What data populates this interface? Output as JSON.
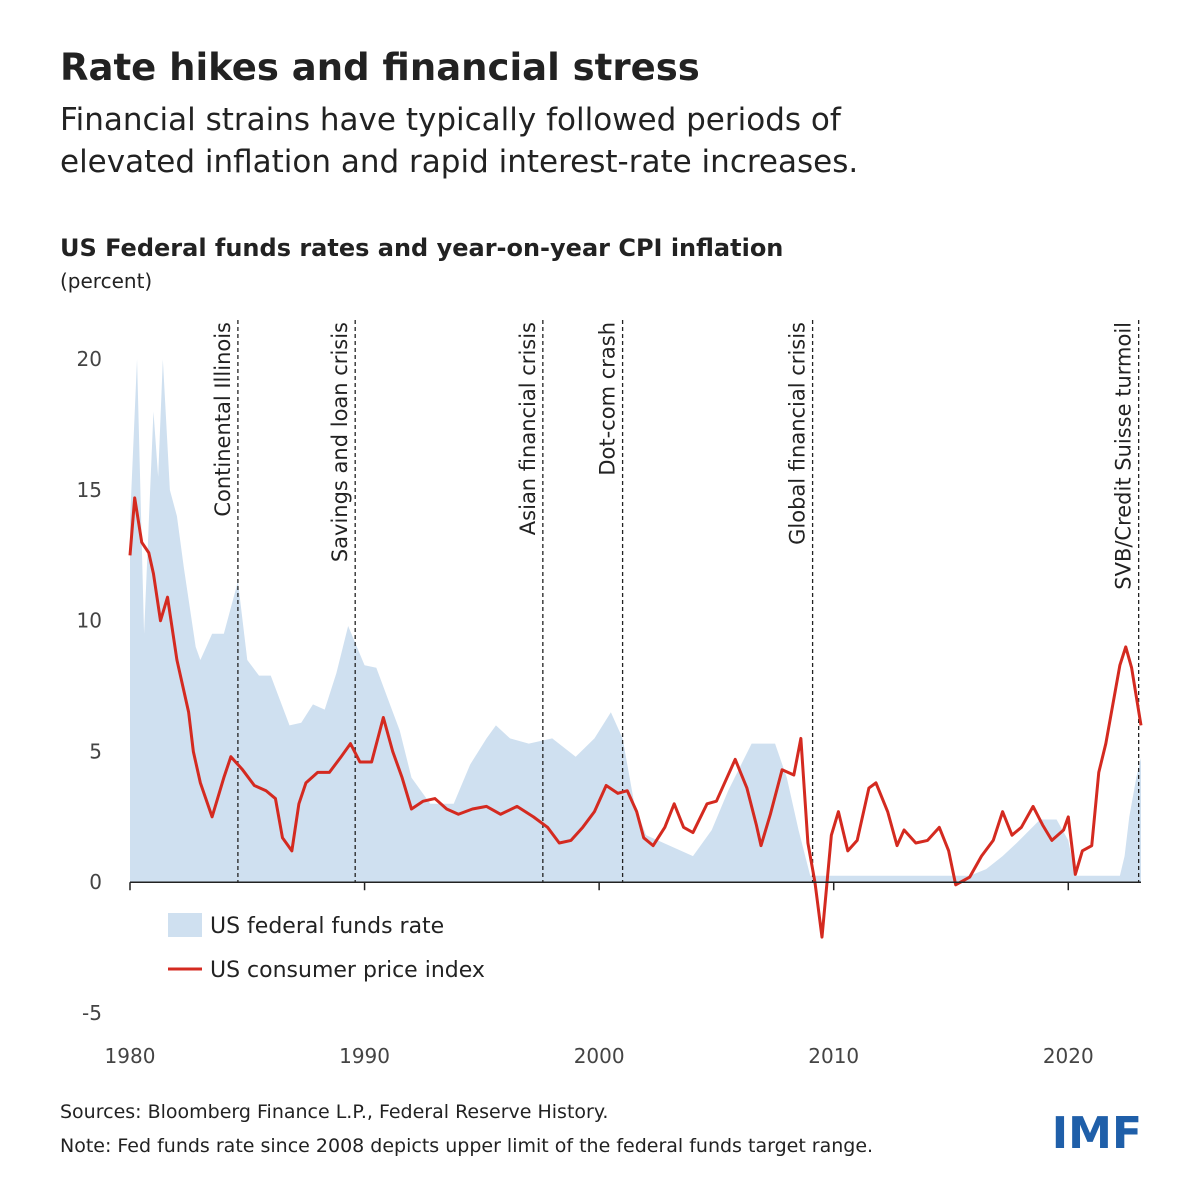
{
  "chart_data": {
    "type": "area-line",
    "title": "Rate hikes and financial stress",
    "subtitle": "Financial strains have typically followed periods of elevated inflation and rapid interest-rate increases.",
    "chart_title": "US Federal funds rates and year-on-year CPI inflation",
    "unit_label": "(percent)",
    "xlim": [
      1980,
      2023.1
    ],
    "ylim": [
      -5,
      21.5
    ],
    "xticks": [
      1980,
      1990,
      2000,
      2010,
      2020
    ],
    "yticks": [
      -5,
      0,
      5,
      10,
      15,
      20
    ],
    "series": [
      {
        "name": "US federal funds rate",
        "kind": "area",
        "color": "#cfe0f0",
        "x": [
          1980.0,
          1980.3,
          1980.6,
          1981.0,
          1981.2,
          1981.4,
          1981.7,
          1982.0,
          1982.3,
          1982.8,
          1983.0,
          1983.5,
          1984.0,
          1984.6,
          1985.0,
          1985.5,
          1986.0,
          1986.8,
          1987.3,
          1987.8,
          1988.3,
          1988.8,
          1989.3,
          1990.0,
          1990.5,
          1991.0,
          1991.5,
          1992.0,
          1992.8,
          1993.8,
          1994.5,
          1995.2,
          1995.6,
          1996.2,
          1997.0,
          1998.0,
          1999.0,
          1999.8,
          2000.5,
          2001.0,
          2001.5,
          2002.0,
          2003.5,
          2004.0,
          2004.8,
          2005.5,
          2006.5,
          2007.5,
          2008.0,
          2008.5,
          2009.0,
          2015.8,
          2016.5,
          2017.2,
          2017.8,
          2018.8,
          2019.5,
          2020.0,
          2020.3,
          2022.2,
          2022.4,
          2022.6,
          2022.9,
          2023.1
        ],
        "values": [
          13.8,
          20,
          9.5,
          18,
          15.5,
          20,
          15,
          14,
          12,
          9,
          8.5,
          9.5,
          9.5,
          11.5,
          8.5,
          7.9,
          7.9,
          6,
          6.1,
          6.8,
          6.6,
          8,
          9.8,
          8.3,
          8.2,
          7,
          5.8,
          4,
          3,
          3,
          4.5,
          5.5,
          6,
          5.5,
          5.3,
          5.5,
          4.8,
          5.5,
          6.5,
          5.5,
          3,
          1.8,
          1.2,
          1,
          2,
          3.5,
          5.3,
          5.3,
          4,
          2,
          0.25,
          0.25,
          0.5,
          1,
          1.5,
          2.4,
          2.4,
          1.6,
          0.25,
          0.25,
          1,
          2.5,
          4,
          4.75
        ]
      },
      {
        "name": "US consumer price index",
        "kind": "line",
        "color": "#d42a20",
        "x": [
          1980.0,
          1980.2,
          1980.5,
          1980.8,
          1981.0,
          1981.3,
          1981.6,
          1982.0,
          1982.5,
          1982.7,
          1983.0,
          1983.5,
          1984.0,
          1984.3,
          1984.8,
          1985.3,
          1985.8,
          1986.2,
          1986.5,
          1986.9,
          1987.2,
          1987.5,
          1988.0,
          1988.5,
          1989.0,
          1989.4,
          1989.8,
          1990.3,
          1990.8,
          1991.2,
          1991.6,
          1992.0,
          1992.5,
          1993.0,
          1993.5,
          1994.0,
          1994.6,
          1995.2,
          1995.8,
          1996.5,
          1997.2,
          1997.8,
          1998.3,
          1998.8,
          1999.3,
          1999.8,
          2000.3,
          2000.8,
          2001.2,
          2001.6,
          2001.9,
          2002.3,
          2002.8,
          2003.2,
          2003.6,
          2004.0,
          2004.6,
          2005.0,
          2005.8,
          2006.3,
          2006.7,
          2006.9,
          2007.3,
          2007.8,
          2008.3,
          2008.6,
          2008.9,
          2009.2,
          2009.5,
          2009.9,
          2010.2,
          2010.6,
          2011.0,
          2011.5,
          2011.8,
          2012.3,
          2012.7,
          2013.0,
          2013.5,
          2014.0,
          2014.5,
          2014.9,
          2015.2,
          2015.8,
          2016.3,
          2016.8,
          2017.2,
          2017.6,
          2018.0,
          2018.5,
          2018.9,
          2019.3,
          2019.8,
          2020.0,
          2020.3,
          2020.6,
          2021.0,
          2021.3,
          2021.6,
          2021.9,
          2022.2,
          2022.45,
          2022.7,
          2022.9,
          2023.1
        ],
        "values": [
          12.5,
          14.7,
          13,
          12.6,
          11.8,
          10,
          10.9,
          8.5,
          6.5,
          5,
          3.8,
          2.5,
          4,
          4.8,
          4.3,
          3.7,
          3.5,
          3.2,
          1.7,
          1.2,
          3,
          3.8,
          4.2,
          4.2,
          4.8,
          5.3,
          4.6,
          4.6,
          6.3,
          5,
          4,
          2.8,
          3.1,
          3.2,
          2.8,
          2.6,
          2.8,
          2.9,
          2.6,
          2.9,
          2.5,
          2.1,
          1.5,
          1.6,
          2.1,
          2.7,
          3.7,
          3.4,
          3.5,
          2.7,
          1.7,
          1.4,
          2.1,
          3,
          2.1,
          1.9,
          3,
          3.1,
          4.7,
          3.6,
          2.2,
          1.4,
          2.6,
          4.3,
          4.1,
          5.5,
          1.5,
          0,
          -2.1,
          1.8,
          2.7,
          1.2,
          1.6,
          3.6,
          3.8,
          2.7,
          1.4,
          2,
          1.5,
          1.6,
          2.1,
          1.2,
          -0.1,
          0.2,
          1,
          1.6,
          2.7,
          1.8,
          2.1,
          2.9,
          2.2,
          1.6,
          2,
          2.5,
          0.3,
          1.2,
          1.4,
          4.2,
          5.3,
          6.8,
          8.3,
          9.0,
          8.2,
          7.1,
          6.0
        ]
      }
    ],
    "events": [
      {
        "x": 1984.6,
        "label": "Continental Illinois"
      },
      {
        "x": 1989.6,
        "label": "Savings and loan crisis"
      },
      {
        "x": 1997.6,
        "label": "Asian financial crisis"
      },
      {
        "x": 2001.0,
        "label": "Dot-com crash"
      },
      {
        "x": 2009.1,
        "label": "Global financial crisis"
      },
      {
        "x": 2023.0,
        "label": "SVB/Credit Suisse turmoil"
      }
    ],
    "sources": "Sources: Bloomberg Finance L.P., Federal Reserve History.",
    "note": "Note: Fed funds rate since 2008 depicts upper limit of the federal funds target range.",
    "logo": "IMF"
  }
}
